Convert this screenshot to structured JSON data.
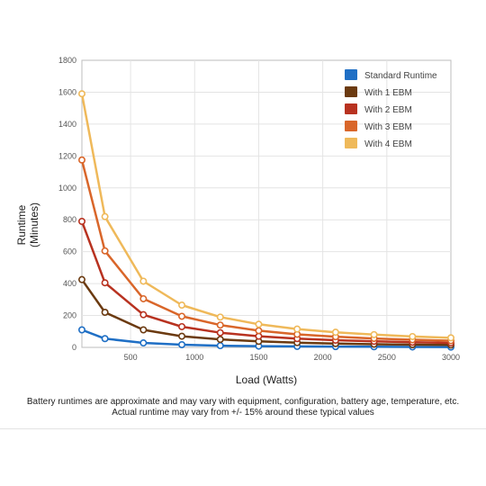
{
  "chart_data": {
    "type": "line",
    "title": "",
    "xlabel": "Load (Watts)",
    "ylabel_line1": "Runtime",
    "ylabel_line2": "(Minutes)",
    "xlim": [
      120,
      3000
    ],
    "ylim": [
      0,
      1800
    ],
    "x_ticks": [
      500,
      1000,
      1500,
      2000,
      2500,
      3000
    ],
    "y_ticks": [
      0,
      200,
      400,
      600,
      800,
      1000,
      1200,
      1400,
      1600,
      1800
    ],
    "grid": true,
    "legend_position": "top-right",
    "x": [
      120,
      300,
      600,
      900,
      1200,
      1500,
      1800,
      2100,
      2400,
      2700,
      3000
    ],
    "series": [
      {
        "name": "Standard Runtime",
        "color": "#1f6fc5",
        "values": [
          110,
          55,
          28,
          17,
          11,
          8,
          6,
          5,
          4,
          3,
          2
        ]
      },
      {
        "name": "With 1 EBM",
        "color": "#6b3a10",
        "values": [
          425,
          220,
          110,
          70,
          50,
          38,
          30,
          24,
          20,
          17,
          15
        ]
      },
      {
        "name": "With 2 EBM",
        "color": "#b83220",
        "values": [
          790,
          405,
          205,
          130,
          92,
          70,
          55,
          45,
          38,
          32,
          28
        ]
      },
      {
        "name": "With 3 EBM",
        "color": "#d9662a",
        "values": [
          1175,
          605,
          305,
          195,
          140,
          105,
          82,
          67,
          56,
          48,
          42
        ]
      },
      {
        "name": "With 4 EBM",
        "color": "#efb95a",
        "values": [
          1590,
          820,
          415,
          265,
          190,
          145,
          115,
          95,
          80,
          68,
          60
        ]
      }
    ]
  },
  "caption": {
    "line1": "Battery runtimes are approximate and may vary with equipment, configuration, battery age, temperature, etc.",
    "line2": "Actual runtime may vary from +/- 15% around these typical values"
  }
}
